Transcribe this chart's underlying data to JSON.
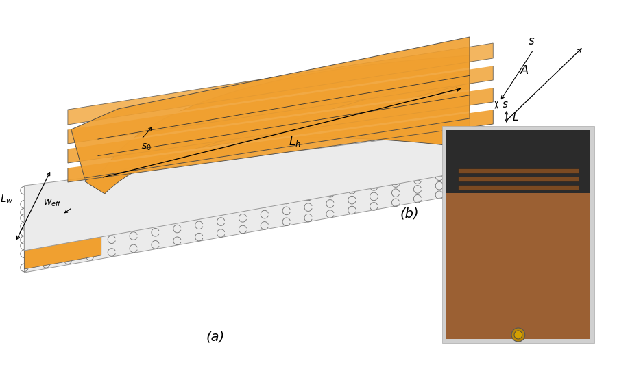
{
  "figure_width": 9.0,
  "figure_height": 5.33,
  "dpi": 100,
  "bg_color": "#ffffff",
  "orange": "#F0A030",
  "orange_dark": "#C07818",
  "ring_color": "#777777",
  "photo_copper": "#9B6033",
  "photo_dark": "#2B2B2B",
  "photo_strip": "#7A4A22",
  "label_a": "(a)",
  "label_b": "(b)"
}
